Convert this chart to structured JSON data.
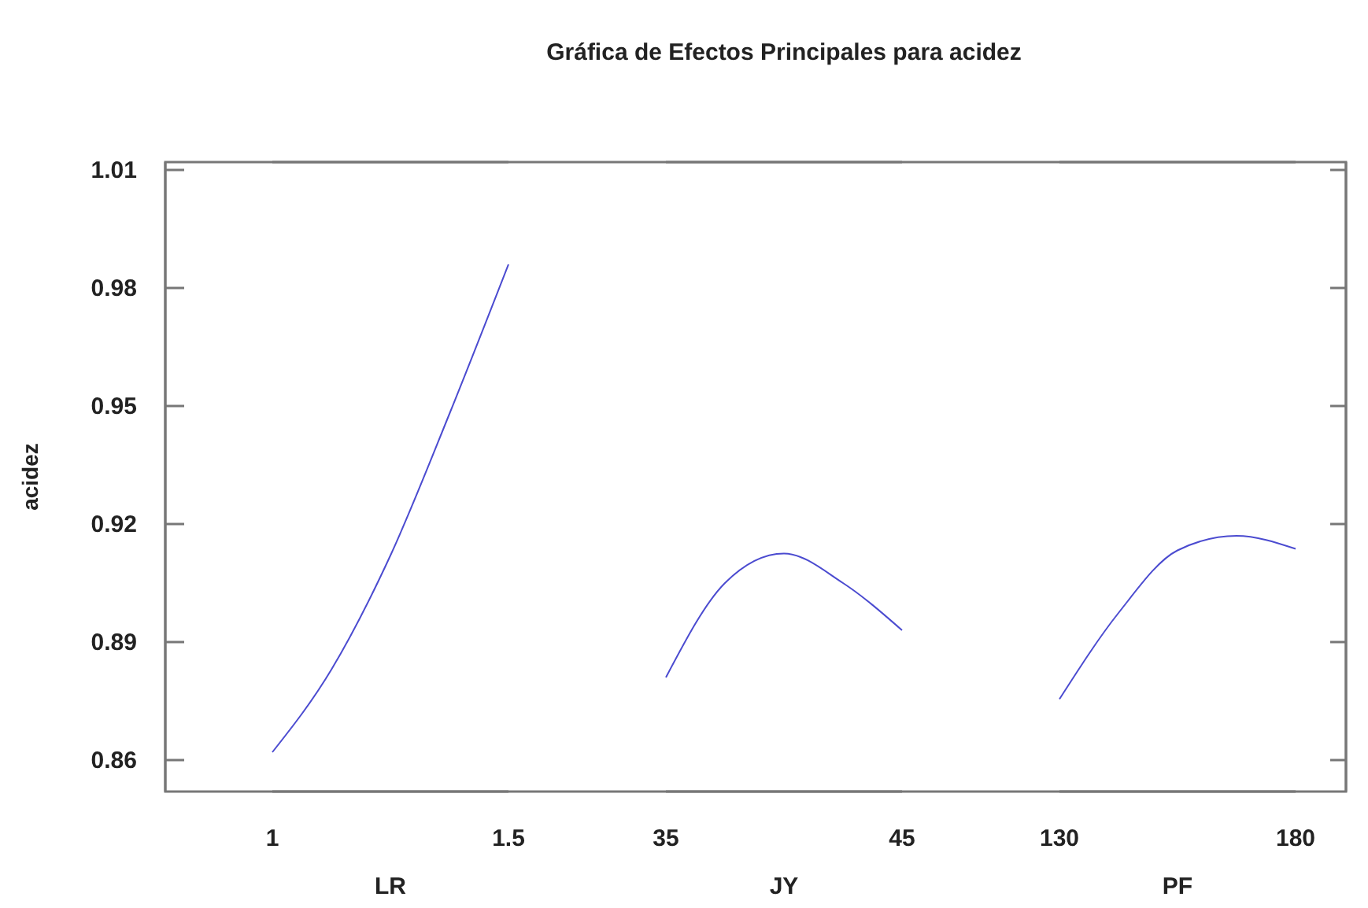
{
  "chart_data": [
    {
      "type": "line",
      "ylabel": "acidez",
      "xlabel": "LR",
      "x": [
        1,
        1.125,
        1.25,
        1.375,
        1.5
      ],
      "series": [
        {
          "color": "#4b4bd0",
          "values": [
            0.862,
            0.883,
            0.912,
            0.948,
            0.986
          ]
        }
      ],
      "xlim": [
        1,
        1.5
      ],
      "xticks": [
        1,
        1.5
      ],
      "ylim": [
        0.852,
        1.012
      ],
      "yticks": [
        0.86,
        0.89,
        0.92,
        0.95,
        0.98,
        1.01
      ]
    },
    {
      "type": "line",
      "title": "Gráfica de Efectos Principales para acidez",
      "xlabel": "JY",
      "x": [
        35,
        37.5,
        40,
        42.5,
        45
      ],
      "series": [
        {
          "color": "#4b4bd0",
          "values": [
            0.881,
            0.905,
            0.9125,
            0.905,
            0.893
          ]
        }
      ],
      "xlim": [
        35,
        45
      ],
      "xticks": [
        35,
        45
      ],
      "ylim": [
        0.852,
        1.012
      ],
      "tick_labels": "x"
    },
    {
      "type": "line",
      "xlabel": "PF",
      "x": [
        130,
        142.5,
        155,
        167.5,
        180
      ],
      "series": [
        {
          "color": "#4b4bd0",
          "values": [
            0.8755,
            0.8974,
            0.9133,
            0.917,
            0.9137
          ]
        }
      ],
      "xlim": [
        130,
        180
      ],
      "xticks": [
        130,
        180
      ],
      "ylim": [
        0.852,
        1.012
      ],
      "yticks": [
        0.86,
        0.89,
        0.92,
        0.95,
        0.98,
        1.01
      ],
      "tick_labels": "x"
    }
  ]
}
